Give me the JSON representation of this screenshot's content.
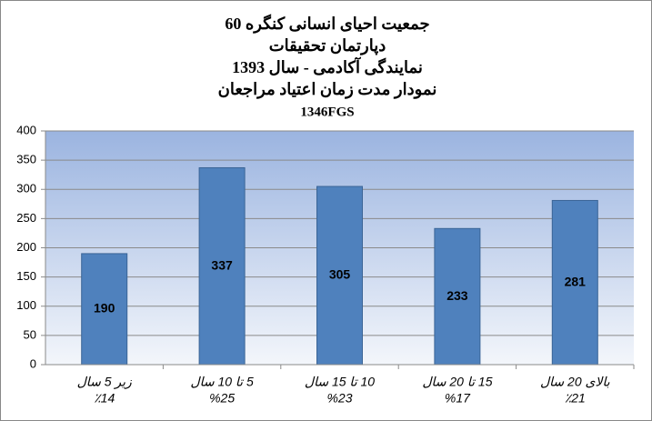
{
  "chart_data": {
    "type": "bar",
    "title": [
      "جمعیت احیای انسانی کنگره 60",
      "دپارتمان تحقیقات",
      "نمایندگی آکادمی - سال 1393",
      "نمودار مدت زمان اعتیاد مراجعان",
      "1346FGS"
    ],
    "categories": [
      [
        "زیر 5 سال",
        "٪14"
      ],
      [
        "5 تا 10 سال",
        "%25"
      ],
      [
        "10 تا 15 سال",
        "%23"
      ],
      [
        "15 تا 20 سال",
        "%17"
      ],
      [
        "بالای 20 سال",
        "٪21"
      ]
    ],
    "values": [
      190,
      337,
      305,
      233,
      281
    ],
    "color": "#4f81bd",
    "ylim": [
      0,
      400
    ],
    "yticks": [
      0,
      50,
      100,
      150,
      200,
      250,
      300,
      350,
      400
    ],
    "grid": true
  }
}
